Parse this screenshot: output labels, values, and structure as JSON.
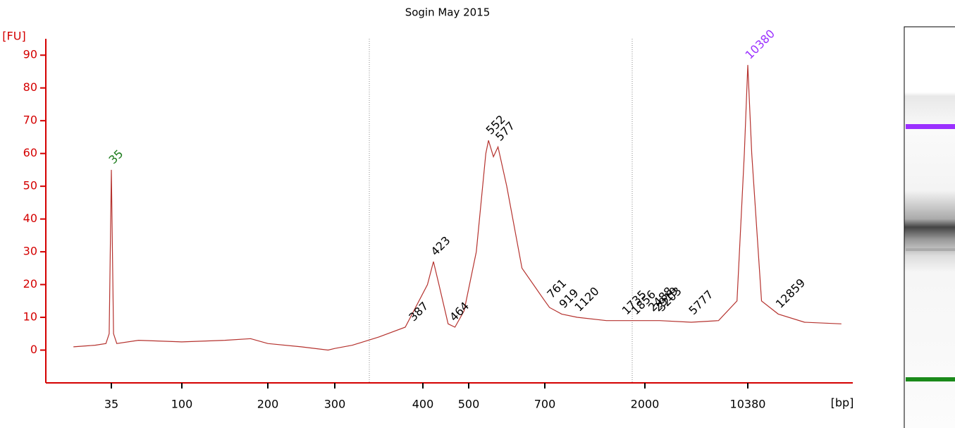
{
  "chart_data": {
    "type": "line",
    "title": "Sogin May 2015",
    "y_label": "[FU]",
    "x_label": "[bp]",
    "ylim": [
      -10,
      95
    ],
    "yticks": [
      0,
      10,
      20,
      30,
      40,
      50,
      60,
      70,
      80,
      90
    ],
    "xticks": [
      35,
      100,
      200,
      300,
      400,
      500,
      700,
      2000,
      10380
    ],
    "series": [
      {
        "color": "#b5322e",
        "x": [
          0,
          20,
          30,
          33,
          35,
          37,
          40,
          60,
          100,
          150,
          180,
          200,
          250,
          290,
          300,
          320,
          350,
          380,
          410,
          423,
          435,
          455,
          470,
          490,
          520,
          545,
          552,
          565,
          577,
          600,
          640,
          700,
          761,
          919,
          1120,
          1500,
          2000,
          3203,
          5777,
          8000,
          9500,
          10100,
          10380,
          10700,
          11500,
          12859,
          15000,
          18000
        ],
        "values": [
          1,
          1.5,
          2,
          5,
          55,
          5,
          2,
          3,
          2.5,
          3,
          3.5,
          2,
          1,
          0,
          0.5,
          1.5,
          4,
          7,
          20,
          27,
          20,
          8,
          7,
          12,
          30,
          60,
          64,
          59,
          62,
          50,
          25,
          15,
          13,
          11,
          10,
          9,
          9,
          9,
          8.5,
          9,
          15,
          60,
          87,
          60,
          15,
          11,
          8.5,
          8
        ]
      }
    ],
    "peaks": [
      {
        "x": 35,
        "y": 56,
        "color": "#1a7a1a"
      },
      {
        "x": 387,
        "y": 8,
        "color": "#000000"
      },
      {
        "x": 423,
        "y": 28,
        "color": "#000000"
      },
      {
        "x": 464,
        "y": 8,
        "color": "#000000"
      },
      {
        "x": 552,
        "y": 65,
        "color": "#000000"
      },
      {
        "x": 577,
        "y": 63,
        "color": "#000000"
      },
      {
        "x": 761,
        "y": 15,
        "color": "#000000"
      },
      {
        "x": 919,
        "y": 12,
        "color": "#000000"
      },
      {
        "x": 1120,
        "y": 11,
        "color": "#000000"
      },
      {
        "x": 1735,
        "y": 10,
        "color": "#000000"
      },
      {
        "x": 1856,
        "y": 10,
        "color": "#000000"
      },
      {
        "x": 2488,
        "y": 11,
        "color": "#000000"
      },
      {
        "x": 2919,
        "y": 11,
        "color": "#000000"
      },
      {
        "x": 3203,
        "y": 11,
        "color": "#000000"
      },
      {
        "x": 5777,
        "y": 10,
        "color": "#000000"
      },
      {
        "x": 10380,
        "y": 88,
        "color": "#9b30ff"
      },
      {
        "x": 12859,
        "y": 12,
        "color": "#000000"
      }
    ]
  }
}
